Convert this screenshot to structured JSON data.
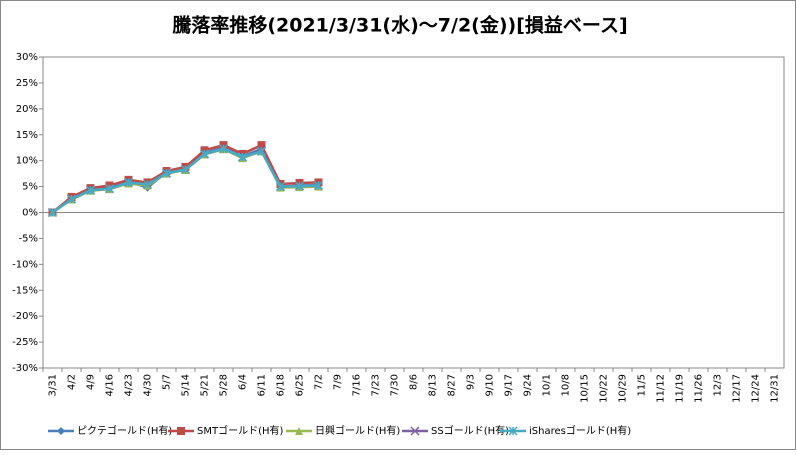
{
  "chart_data": {
    "type": "line",
    "title": "騰落率推移(2021/3/31(水)～7/2(金))[損益ベース]",
    "categories": [
      "3/31",
      "4/2",
      "4/9",
      "4/16",
      "4/23",
      "4/30",
      "5/7",
      "5/14",
      "5/21",
      "5/28",
      "6/4",
      "6/11",
      "6/18",
      "6/25",
      "7/2",
      "7/9",
      "7/16",
      "7/23",
      "7/30",
      "8/6",
      "8/13",
      "8/27",
      "9/3",
      "9/10",
      "9/17",
      "9/24",
      "10/1",
      "10/8",
      "10/15",
      "10/22",
      "10/29",
      "11/5",
      "11/12",
      "11/19",
      "11/26",
      "12/3",
      "12/17",
      "12/24",
      "12/31"
    ],
    "series": [
      {
        "name": "ピクテゴールド(H有)",
        "color": "#4a7ebb",
        "marker": "diamond",
        "values": [
          0,
          2.8,
          4.5,
          4.8,
          6.0,
          4.8,
          7.8,
          8.5,
          11.5,
          12.5,
          10.8,
          12.3,
          5.0,
          5.2,
          5.3,
          null,
          null,
          null,
          null,
          null,
          null,
          null,
          null,
          null,
          null,
          null,
          null,
          null,
          null,
          null,
          null,
          null,
          null,
          null,
          null,
          null,
          null,
          null,
          null
        ]
      },
      {
        "name": "SMTゴールド(H有)",
        "color": "#be4b48",
        "marker": "square",
        "values": [
          0,
          3.0,
          4.7,
          5.2,
          6.3,
          5.8,
          8.0,
          8.8,
          12.0,
          13.0,
          11.3,
          13.0,
          5.5,
          5.7,
          5.8,
          null,
          null,
          null,
          null,
          null,
          null,
          null,
          null,
          null,
          null,
          null,
          null,
          null,
          null,
          null,
          null,
          null,
          null,
          null,
          null,
          null,
          null,
          null,
          null
        ]
      },
      {
        "name": "日興ゴールド(H有)",
        "color": "#98b954",
        "marker": "triangle",
        "values": [
          0,
          2.5,
          4.2,
          4.5,
          5.6,
          5.2,
          7.5,
          8.2,
          11.2,
          12.2,
          10.5,
          11.8,
          4.8,
          4.9,
          5.0,
          null,
          null,
          null,
          null,
          null,
          null,
          null,
          null,
          null,
          null,
          null,
          null,
          null,
          null,
          null,
          null,
          null,
          null,
          null,
          null,
          null,
          null,
          null,
          null
        ]
      },
      {
        "name": "SSゴールド(H有)",
        "color": "#7d60a0",
        "marker": "x",
        "values": [
          0,
          2.6,
          4.3,
          4.6,
          5.8,
          5.4,
          7.6,
          8.3,
          11.3,
          12.3,
          10.7,
          12.0,
          5.0,
          5.1,
          5.2,
          null,
          null,
          null,
          null,
          null,
          null,
          null,
          null,
          null,
          null,
          null,
          null,
          null,
          null,
          null,
          null,
          null,
          null,
          null,
          null,
          null,
          null,
          null,
          null
        ]
      },
      {
        "name": "iSharesゴールド(H有)",
        "color": "#46aac5",
        "marker": "star",
        "values": [
          0,
          2.6,
          4.3,
          4.6,
          5.8,
          5.4,
          7.6,
          8.3,
          11.3,
          12.3,
          10.7,
          11.8,
          5.0,
          5.1,
          5.2,
          null,
          null,
          null,
          null,
          null,
          null,
          null,
          null,
          null,
          null,
          null,
          null,
          null,
          null,
          null,
          null,
          null,
          null,
          null,
          null,
          null,
          null,
          null,
          null
        ]
      }
    ],
    "ylim": [
      -30,
      30
    ],
    "yticks": [
      {
        "value": -30,
        "label": "-30%"
      },
      {
        "value": -25,
        "label": "-25%"
      },
      {
        "value": -20,
        "label": "-20%"
      },
      {
        "value": -15,
        "label": "-15%"
      },
      {
        "value": -10,
        "label": "-10%"
      },
      {
        "value": -5,
        "label": "-5%"
      },
      {
        "value": 0,
        "label": "0%"
      },
      {
        "value": 5,
        "label": "5%"
      },
      {
        "value": 10,
        "label": "10%"
      },
      {
        "value": 15,
        "label": "15%"
      },
      {
        "value": 20,
        "label": "20%"
      },
      {
        "value": 25,
        "label": "25%"
      },
      {
        "value": 30,
        "label": "30%"
      }
    ],
    "grid": false,
    "legend": "bottom"
  }
}
